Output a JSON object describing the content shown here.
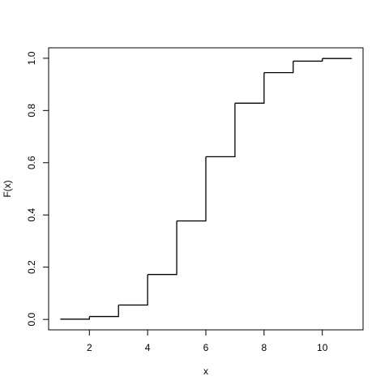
{
  "chart_data": {
    "type": "step",
    "x": [
      1,
      2,
      3,
      4,
      5,
      6,
      7,
      8,
      9,
      10,
      11
    ],
    "values": [
      0.001,
      0.011,
      0.055,
      0.172,
      0.377,
      0.623,
      0.828,
      0.945,
      0.989,
      0.999,
      1.0
    ],
    "color": "#000000",
    "xlabel": "x",
    "ylabel": "F(x)",
    "xlim": [
      0.6,
      11.4
    ],
    "ylim": [
      -0.04,
      1.04
    ],
    "xticks": [
      2,
      4,
      6,
      8,
      10
    ],
    "yticks": [
      {
        "value": 0,
        "label": "0.0"
      },
      0.2,
      0.4,
      0.6,
      0.8,
      {
        "value": 1,
        "label": "1.0"
      }
    ]
  }
}
